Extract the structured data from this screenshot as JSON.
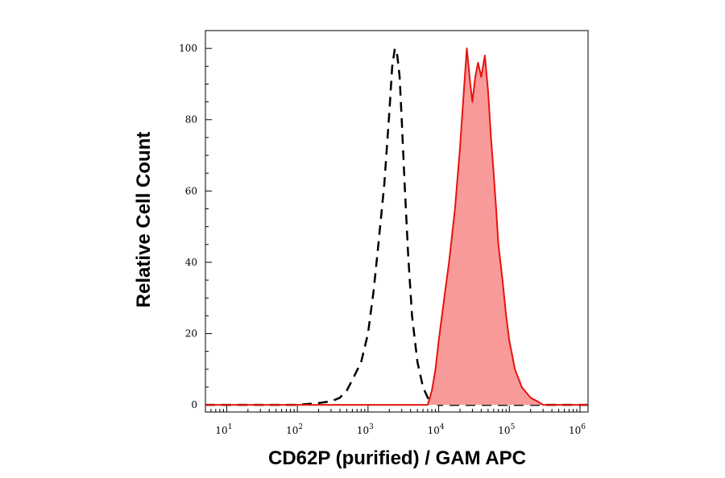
{
  "chart_data": {
    "type": "area",
    "xlabel": "CD62P (purified) / GAM APC",
    "ylabel": "Relative Cell Count",
    "x_scale": "log",
    "xlim": [
      5,
      1300000
    ],
    "ylim": [
      -2,
      105
    ],
    "x_tick_values": [
      10,
      100,
      1000,
      10000,
      100000,
      1000000
    ],
    "x_tick_labels": [
      {
        "base": "10",
        "exp": "1"
      },
      {
        "base": "10",
        "exp": "2"
      },
      {
        "base": "10",
        "exp": "3"
      },
      {
        "base": "10",
        "exp": "4"
      },
      {
        "base": "10",
        "exp": "5"
      },
      {
        "base": "10",
        "exp": "6"
      }
    ],
    "y_ticks": [
      0,
      20,
      40,
      60,
      80,
      100
    ],
    "y_tick_labels": [
      "0",
      "20",
      "40",
      "60",
      "80",
      "100"
    ],
    "grid": false,
    "legend": "none",
    "series": [
      {
        "style": "dashed",
        "color": "#000000",
        "fill": "none",
        "x": [
          5,
          100,
          200,
          300,
          400,
          500,
          600,
          800,
          1000,
          1200,
          1400,
          1700,
          2000,
          2200,
          2400,
          2600,
          2800,
          3000,
          3300,
          3700,
          4200,
          5000,
          6000,
          7000,
          8000,
          9000,
          10000,
          1300000
        ],
        "y": [
          0,
          0,
          0.5,
          1,
          2,
          4,
          7,
          12,
          20,
          32,
          45,
          62,
          82,
          95,
          100,
          98,
          92,
          80,
          62,
          42,
          25,
          12,
          5,
          2,
          1,
          0.5,
          0,
          0
        ]
      },
      {
        "style": "solid",
        "color": "#e8130e",
        "fill": "#f89a9a",
        "x": [
          5,
          7000,
          8000,
          9000,
          10000,
          12000,
          14000,
          17000,
          20000,
          22000,
          25000,
          28000,
          30000,
          33000,
          36000,
          40000,
          45000,
          50000,
          55000,
          60000,
          65000,
          70000,
          80000,
          90000,
          100000,
          120000,
          150000,
          200000,
          250000,
          300000,
          1300000
        ],
        "y": [
          0,
          0,
          4,
          10,
          18,
          30,
          40,
          55,
          72,
          84,
          100,
          90,
          85,
          92,
          96,
          92,
          98,
          88,
          75,
          65,
          55,
          45,
          35,
          25,
          18,
          10,
          5,
          2,
          1,
          0,
          0
        ]
      }
    ]
  }
}
